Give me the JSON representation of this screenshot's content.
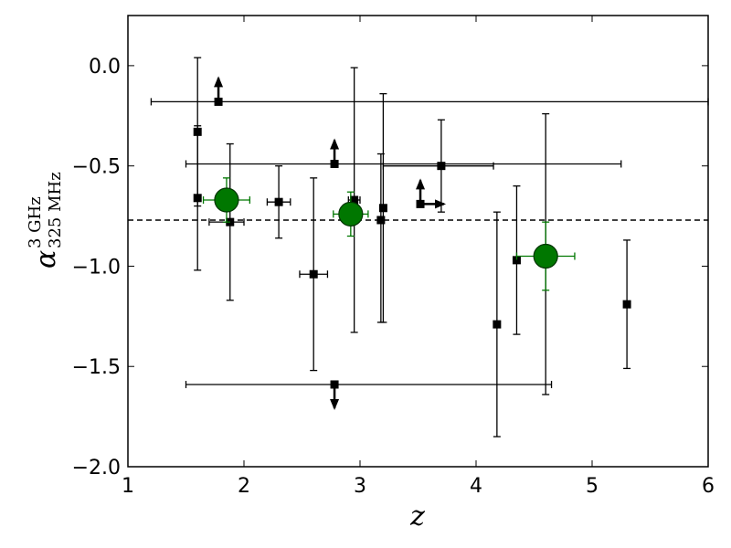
{
  "chart_data": {
    "type": "scatter",
    "title": "",
    "xlabel": "z",
    "ylabel": {
      "symbol": "α",
      "superscript": "3 GHz",
      "subscript": "325 MHz"
    },
    "xlim": [
      1,
      6
    ],
    "ylim": [
      -2.0,
      0.25
    ],
    "x_ticks": [
      1,
      2,
      3,
      4,
      5,
      6
    ],
    "x_tick_labels": [
      "1",
      "2",
      "3",
      "4",
      "5",
      "6"
    ],
    "y_ticks": [
      0.0,
      -0.5,
      -1.0,
      -1.5,
      -2.0
    ],
    "y_tick_labels": [
      "0.0",
      "−0.5",
      "−1.0",
      "−1.5",
      "−2.0"
    ],
    "grid": false,
    "reference_line": {
      "y": -0.77,
      "style": "dashed"
    },
    "series": [
      {
        "marker": "square",
        "color": "#000000",
        "points": [
          {
            "x": 1.6,
            "y": -0.33,
            "yerr": [
              0.37,
              0.37
            ]
          },
          {
            "x": 1.6,
            "y": -0.66,
            "yerr": [
              0.36,
              0.36
            ]
          },
          {
            "x": 1.88,
            "y": -0.78,
            "xerr": [
              0.18,
              0.12
            ],
            "yerr": [
              0.39,
              0.39
            ]
          },
          {
            "x": 2.3,
            "y": -0.68,
            "xerr": [
              0.1,
              0.1
            ],
            "yerr": [
              0.18,
              0.18
            ]
          },
          {
            "x": 2.6,
            "y": -1.04,
            "xerr": [
              0.12,
              0.12
            ],
            "yerr": [
              0.48,
              0.48
            ]
          },
          {
            "x": 2.95,
            "y": -0.67,
            "xerr": [
              0.05,
              0.05
            ],
            "yerr": [
              0.66,
              0.66
            ]
          },
          {
            "x": 3.18,
            "y": -0.77,
            "yerr": [
              0.51,
              0.33
            ]
          },
          {
            "x": 3.2,
            "y": -0.71,
            "yerr": [
              0.57,
              0.57
            ]
          },
          {
            "x": 3.7,
            "y": -0.5,
            "xerr": [
              0.5,
              0.45
            ],
            "yerr": [
              0.23,
              0.23
            ]
          },
          {
            "x": 4.18,
            "y": -1.29,
            "yerr": [
              0.56,
              0.56
            ]
          },
          {
            "x": 4.35,
            "y": -0.97,
            "yerr": [
              0.37,
              0.37
            ]
          },
          {
            "x": 4.6,
            "y": -0.95,
            "yerr": [
              0.69,
              0.71
            ]
          },
          {
            "x": 5.3,
            "y": -1.19,
            "yerr": [
              0.32,
              0.32
            ]
          }
        ]
      },
      {
        "marker": "square",
        "color": "#000000",
        "limit": true,
        "points": [
          {
            "x": 1.78,
            "y": -0.18,
            "xerr": [
              0.58,
              4.22
            ],
            "arrow": "up"
          },
          {
            "x": 2.78,
            "y": -0.49,
            "xerr": [
              1.28,
              2.47
            ],
            "arrow": "up"
          },
          {
            "x": 3.52,
            "y": -0.69,
            "arrow": "up-right"
          },
          {
            "x": 2.78,
            "y": -1.59,
            "xerr": [
              1.28,
              1.87
            ],
            "arrow": "down"
          }
        ]
      },
      {
        "marker": "circle",
        "color": "#007700",
        "edge_color": "#003300",
        "points": [
          {
            "x": 1.85,
            "y": -0.67,
            "xerr": [
              0.2,
              0.2
            ],
            "yerr": [
              0.11,
              0.11
            ]
          },
          {
            "x": 2.92,
            "y": -0.74,
            "xerr": [
              0.15,
              0.15
            ],
            "yerr": [
              0.11,
              0.11
            ]
          },
          {
            "x": 4.6,
            "y": -0.95,
            "xerr": [
              0.25,
              0.25
            ],
            "yerr": [
              0.17,
              0.17
            ]
          }
        ]
      }
    ]
  }
}
